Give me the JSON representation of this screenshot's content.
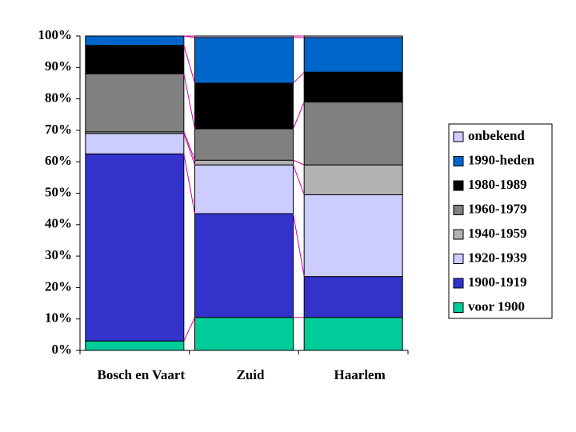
{
  "chart_data": {
    "type": "stacked_bar_100",
    "categories": [
      "Bosch en Vaart",
      "Zuid",
      "Haarlem"
    ],
    "series": [
      {
        "name": "voor 1900",
        "color": "#00cc99",
        "values": [
          3,
          10.5,
          10.5
        ]
      },
      {
        "name": "1900-1919",
        "color": "#3333cc",
        "values": [
          59.5,
          33,
          13
        ]
      },
      {
        "name": "1920-1939",
        "color": "#ccccff",
        "values": [
          6.5,
          15.5,
          26
        ]
      },
      {
        "name": "1940-1959",
        "color": "#b2b2b2",
        "values": [
          0.5,
          1.5,
          9.5
        ]
      },
      {
        "name": "1960-1979",
        "color": "#808080",
        "values": [
          18.5,
          10,
          20
        ]
      },
      {
        "name": "1980-1989",
        "color": "#000000",
        "values": [
          9,
          14.5,
          9.5
        ]
      },
      {
        "name": "1990-heden",
        "color": "#0066cc",
        "values": [
          3,
          14.5,
          11
        ]
      },
      {
        "name": "onbekend",
        "color": "#ccccff",
        "values": [
          0,
          0.5,
          0.5
        ]
      }
    ],
    "ylim": [
      0,
      100
    ],
    "yticks": [
      {
        "value": 0,
        "label": "0%"
      },
      {
        "value": 10,
        "label": "10%"
      },
      {
        "value": 20,
        "label": "20%"
      },
      {
        "value": 30,
        "label": "30%"
      },
      {
        "value": 40,
        "label": "40%"
      },
      {
        "value": 50,
        "label": "50%"
      },
      {
        "value": 60,
        "label": "60%"
      },
      {
        "value": 70,
        "label": "70%"
      },
      {
        "value": 80,
        "label": "80%"
      },
      {
        "value": 90,
        "label": "90%"
      },
      {
        "value": 100,
        "label": "100%"
      }
    ],
    "series_lines_color": "#cc0099"
  }
}
